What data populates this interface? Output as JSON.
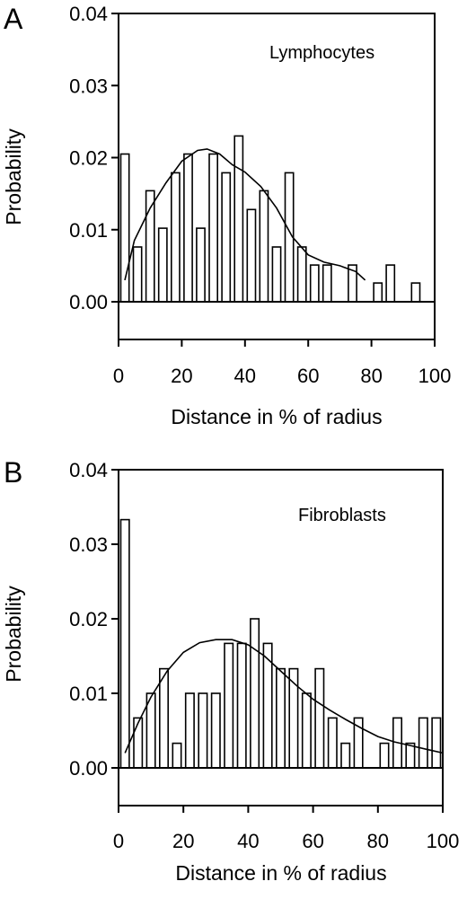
{
  "chart_data": [
    {
      "panel": "A",
      "type": "bar",
      "annotation": "Lymphocytes",
      "xlabel": "Distance in % of radius",
      "ylabel": "Probability",
      "xlim": [
        0,
        100
      ],
      "ylim": [
        0,
        0.04
      ],
      "x_ticks": [
        0,
        20,
        40,
        60,
        80,
        100
      ],
      "y_ticks": [
        0.0,
        0.01,
        0.02,
        0.03,
        0.04
      ],
      "bar_width": 2.6,
      "x": [
        2,
        6,
        10,
        14,
        18,
        22,
        26,
        30,
        34,
        38,
        42,
        46,
        50,
        54,
        58,
        62,
        66,
        74,
        82,
        86,
        94
      ],
      "values": [
        0.0205,
        0.0076,
        0.0154,
        0.0102,
        0.0179,
        0.0205,
        0.0102,
        0.0205,
        0.0179,
        0.023,
        0.0128,
        0.0154,
        0.0076,
        0.0179,
        0.0076,
        0.0051,
        0.0051,
        0.0051,
        0.0026,
        0.0051,
        0.0026
      ],
      "curve": {
        "type": "line",
        "x": [
          2,
          5,
          10,
          15,
          20,
          25,
          28,
          32,
          36,
          40,
          45,
          50,
          55,
          60,
          65,
          70,
          75,
          78
        ],
        "y": [
          0.003,
          0.0085,
          0.013,
          0.0165,
          0.0195,
          0.021,
          0.0212,
          0.0205,
          0.019,
          0.018,
          0.016,
          0.013,
          0.009,
          0.0065,
          0.0055,
          0.005,
          0.0042,
          0.003
        ]
      },
      "grid": false
    },
    {
      "panel": "B",
      "type": "bar",
      "annotation": "Fibroblasts",
      "xlabel": "Distance in % of radius",
      "ylabel": "Probability",
      "xlim": [
        0,
        100
      ],
      "ylim": [
        0,
        0.04
      ],
      "x_ticks": [
        0,
        20,
        40,
        60,
        80,
        100
      ],
      "y_ticks": [
        0.0,
        0.01,
        0.02,
        0.03,
        0.04
      ],
      "bar_width": 2.6,
      "x": [
        2,
        6,
        10,
        14,
        18,
        22,
        26,
        30,
        34,
        38,
        42,
        46,
        50,
        54,
        58,
        62,
        66,
        70,
        74,
        82,
        86,
        90,
        94,
        98
      ],
      "values": [
        0.0333,
        0.0067,
        0.01,
        0.0133,
        0.0033,
        0.01,
        0.01,
        0.01,
        0.0167,
        0.0167,
        0.02,
        0.0167,
        0.0133,
        0.0133,
        0.01,
        0.0133,
        0.0067,
        0.0033,
        0.0067,
        0.0033,
        0.0067,
        0.0033,
        0.0067,
        0.0067
      ],
      "curve": {
        "type": "line",
        "x": [
          2,
          6,
          10,
          15,
          20,
          25,
          30,
          35,
          40,
          45,
          50,
          55,
          60,
          65,
          70,
          75,
          80,
          85,
          90,
          95,
          100
        ],
        "y": [
          0.002,
          0.006,
          0.0095,
          0.013,
          0.0155,
          0.0168,
          0.0172,
          0.0172,
          0.0165,
          0.015,
          0.013,
          0.011,
          0.0092,
          0.0078,
          0.0065,
          0.0053,
          0.0042,
          0.0035,
          0.003,
          0.0025,
          0.002
        ]
      },
      "grid": false
    }
  ]
}
